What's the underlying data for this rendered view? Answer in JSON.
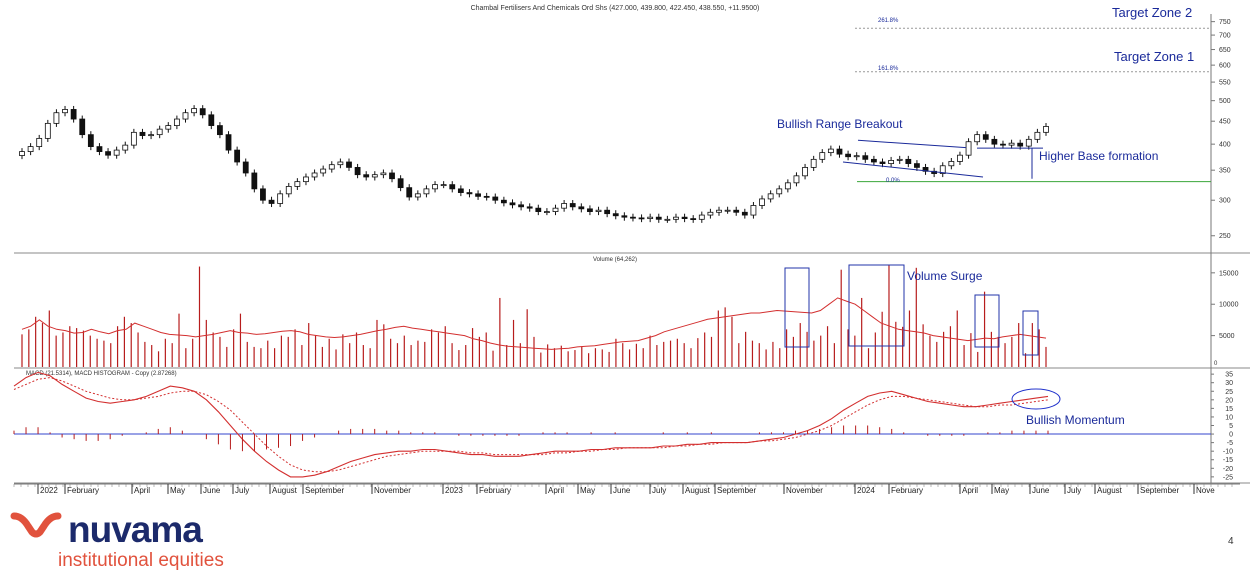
{
  "chart_data": [
    {
      "type": "candlestick",
      "title": "Chambal Fertilisers And Chemicals Ord Shs (427.000, 439.800, 422.450, 438.550, +11.9500)",
      "ylim": [
        230,
        780
      ],
      "y_scale": "log",
      "y_ticks": [
        250,
        300,
        350,
        400,
        450,
        500,
        550,
        600,
        650,
        700,
        750
      ],
      "x_labels": [
        "2022",
        "February",
        "April",
        "May",
        "June",
        "July",
        "August",
        "September",
        "November",
        "2023",
        "February",
        "April",
        "May",
        "June",
        "July",
        "August",
        "September",
        "November",
        "2024",
        "February",
        "April",
        "May",
        "June",
        "July",
        "August",
        "September",
        "Nove"
      ],
      "candles_close": [
        385,
        395,
        412,
        445,
        470,
        478,
        455,
        420,
        395,
        385,
        378,
        388,
        398,
        425,
        418,
        420,
        432,
        440,
        455,
        470,
        480,
        465,
        440,
        420,
        388,
        365,
        345,
        318,
        300,
        295,
        310,
        322,
        330,
        338,
        345,
        352,
        360,
        365,
        355,
        342,
        338,
        342,
        345,
        335,
        320,
        305,
        310,
        318,
        325,
        325,
        318,
        312,
        310,
        306,
        305,
        300,
        296,
        293,
        290,
        288,
        283,
        283,
        288,
        295,
        290,
        287,
        283,
        285,
        280,
        277,
        275,
        274,
        273,
        275,
        272,
        272,
        275,
        273,
        272,
        278,
        282,
        285,
        285,
        282,
        278,
        292,
        302,
        310,
        318,
        328,
        340,
        355,
        370,
        383,
        390,
        380,
        375,
        377,
        370,
        365,
        362,
        368,
        370,
        362,
        355,
        348,
        344,
        358,
        366,
        378,
        405,
        420,
        410,
        400,
        398,
        402,
        396,
        410,
        425,
        438
      ],
      "annotations": [
        "Target Zone 2",
        "Target Zone 1",
        "Bullish Range Breakout",
        "Higher Base formation",
        "261.8%",
        "161.8%",
        "0.0%"
      ],
      "levels": {
        "target_zone_2": 725,
        "target_zone_1": 580,
        "base": 330
      }
    },
    {
      "type": "bar",
      "title": "Volume (64,262)",
      "ylim": [
        0,
        18000
      ],
      "y_ticks": [
        5000,
        10000,
        15000
      ],
      "annotations": [
        "Volume Surge"
      ],
      "ma_values": [
        6000,
        6500,
        7500,
        6500,
        6000,
        5800,
        5400,
        5500,
        6000,
        5600,
        5300,
        5800,
        6000,
        7000,
        6500,
        6000,
        5500,
        5200,
        5100,
        5000,
        4800,
        5000,
        5200,
        5500,
        5800,
        5500,
        5400,
        5200,
        5300,
        5500,
        5700,
        5800,
        5600,
        5200,
        5000,
        4800,
        4700,
        4800,
        5000,
        5200,
        5500,
        5800,
        6000,
        6300,
        6500,
        6200,
        6000,
        5800,
        5600,
        5400,
        5200,
        5000,
        4500,
        4200,
        3800,
        3500,
        3300,
        3200,
        3100,
        3000,
        2900,
        2800,
        2900,
        3000,
        3200,
        3300,
        3400,
        3600,
        3800,
        4000,
        4100,
        4200,
        4600,
        5000,
        5600,
        6000,
        6400,
        6800,
        7200,
        7600,
        7800,
        8000,
        8200,
        8400,
        8600,
        8600,
        8800,
        9000,
        8900,
        8800,
        8700,
        8600,
        9000,
        10000,
        11000,
        10500,
        10000,
        9000,
        8000,
        7000,
        6500,
        6000,
        5800,
        5600,
        5400,
        5000,
        4800,
        4600,
        4400,
        4200,
        4400,
        4600,
        4500,
        4800,
        5000,
        5200,
        5000,
        4800,
        4600
      ],
      "values": [
        5200,
        6000,
        8000,
        7000,
        9000,
        5000,
        5500,
        6500,
        6200,
        5800,
        5000,
        4500,
        4200,
        3800,
        6500,
        8000,
        7000,
        5500,
        4000,
        3500,
        2500,
        4500,
        3800,
        8500,
        3000,
        4500,
        16000,
        7500,
        5500,
        4800,
        3200,
        6000,
        8500,
        4000,
        3200,
        3000,
        4200,
        3000,
        5000,
        4800,
        6000,
        3500,
        7000,
        5000,
        3200,
        4500,
        2800,
        5200,
        3800,
        5500,
        3500,
        3000,
        7500,
        6800,
        4500,
        3800,
        5000,
        3500,
        4200,
        4000,
        6000,
        5500,
        6500,
        3800,
        2700,
        3500,
        6200,
        4800,
        5500,
        2600,
        11000,
        3500,
        7500,
        3800,
        9200,
        4800,
        2300,
        3600,
        3000,
        3400,
        2500,
        2700,
        3300,
        2200,
        3000,
        2800,
        2400,
        4500,
        3800,
        2800,
        3700,
        3000,
        5000,
        3500,
        4000,
        4200,
        4500,
        3800,
        3000,
        4600,
        5500,
        4800,
        9000,
        9500,
        8000,
        3800,
        5600,
        4200,
        3800,
        2800,
        4000,
        3000,
        6000,
        4800,
        7000,
        5600,
        4200,
        5000,
        6500,
        3800,
        15500,
        6000,
        5000,
        11000,
        3000,
        5500,
        8800,
        16200,
        7200,
        6400,
        9000,
        15800,
        6800,
        5000,
        4000,
        5600,
        6500,
        9000,
        3500,
        5400,
        2400,
        12000,
        5600,
        4800,
        3800,
        4800,
        7000,
        2200,
        7000,
        6000,
        3200
      ]
    },
    {
      "type": "line",
      "title": "MACD (21.5314), MACD HISTOGRAM - Copy (2.87268)",
      "ylim": [
        -28,
        38
      ],
      "y_ticks": [
        35,
        30,
        25,
        20,
        15,
        10,
        5,
        0,
        -5,
        -10,
        -15,
        -20,
        -25
      ],
      "annotations": [
        "Bullish Momentum"
      ],
      "series": [
        {
          "values": [
            28,
            33,
            36,
            34,
            29,
            25,
            21,
            19,
            18,
            19,
            20,
            22,
            25,
            28,
            27,
            25,
            20,
            13,
            5,
            -3,
            -10,
            -16,
            -21,
            -25,
            -25,
            -24,
            -22,
            -19,
            -16,
            -14,
            -12,
            -11,
            -10,
            -10,
            -9,
            -9,
            -10,
            -11,
            -12,
            -12,
            -13,
            -13,
            -13,
            -12,
            -11,
            -10,
            -10,
            -10,
            -9,
            -9,
            -8,
            -8,
            -8,
            -8,
            -7,
            -7,
            -6,
            -6,
            -5,
            -5,
            -5,
            -5,
            -4,
            -3,
            -2,
            0,
            2,
            5,
            9,
            14,
            18,
            22,
            24,
            25,
            23,
            21,
            19,
            18,
            17,
            16,
            16,
            17,
            18,
            19,
            20,
            21,
            22
          ]
        },
        {
          "values": [
            26,
            29,
            32,
            33,
            31,
            28,
            25,
            23,
            21,
            20,
            20,
            21,
            22,
            24,
            25,
            25,
            23,
            19,
            14,
            7,
            0,
            -7,
            -13,
            -18,
            -21,
            -22,
            -22,
            -21,
            -19,
            -17,
            -15,
            -13,
            -12,
            -11,
            -10,
            -10,
            -10,
            -10,
            -11,
            -11,
            -12,
            -12,
            -12,
            -12,
            -12,
            -11,
            -11,
            -10,
            -10,
            -9,
            -9,
            -8,
            -8,
            -8,
            -8,
            -7,
            -7,
            -6,
            -6,
            -5,
            -5,
            -5,
            -4,
            -4,
            -3,
            -2,
            0,
            2,
            5,
            9,
            13,
            17,
            20,
            22,
            22,
            21,
            20,
            19,
            18,
            17,
            16,
            16,
            17,
            17,
            18,
            19,
            20
          ]
        },
        {
          "name": "histogram",
          "values": [
            2,
            4,
            4,
            1,
            -2,
            -3,
            -4,
            -4,
            -3,
            -1,
            0,
            1,
            3,
            4,
            2,
            0,
            -3,
            -6,
            -9,
            -10,
            -10,
            -9,
            -8,
            -7,
            -4,
            -2,
            0,
            2,
            3,
            3,
            3,
            2,
            2,
            1,
            1,
            1,
            0,
            -1,
            -1,
            -1,
            -1,
            -1,
            -1,
            0,
            1,
            1,
            1,
            0,
            1,
            0,
            1,
            0,
            0,
            0,
            1,
            0,
            1,
            0,
            1,
            0,
            0,
            0,
            1,
            1,
            1,
            2,
            2,
            3,
            4,
            5,
            5,
            5,
            4,
            3,
            1,
            0,
            -1,
            -1,
            -1,
            -1,
            0,
            1,
            1,
            2,
            2,
            2,
            2
          ]
        }
      ]
    }
  ],
  "footer": {
    "brand": "nuvama",
    "brand_sub": "institutional equities",
    "page_number": "4"
  }
}
